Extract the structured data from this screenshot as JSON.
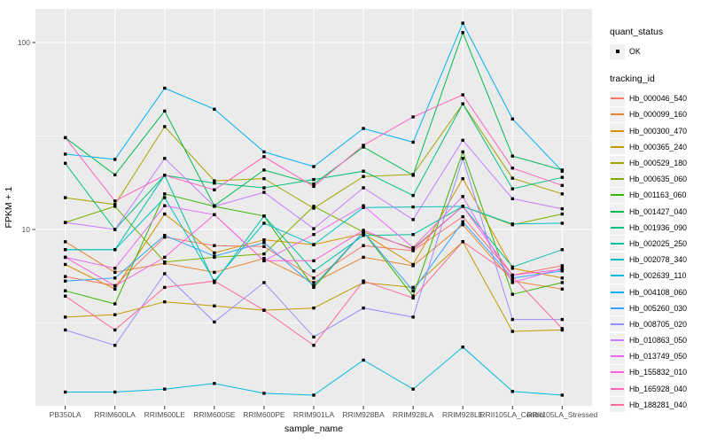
{
  "figure": {
    "panel_bg": "#EBEBEB",
    "grid_color": "#FFFFFF",
    "axis_text_color": "#4D4D4D",
    "tick_color": "#333333",
    "marker_color": "#000000"
  },
  "legend": {
    "quant_status": {
      "title": "quant_status",
      "items": [
        {
          "label": "OK"
        }
      ]
    },
    "tracking_id": {
      "title": "tracking_id"
    }
  },
  "chart_data": {
    "type": "line",
    "title": "",
    "xlabel": "sample_name",
    "ylabel": "FPKM + 1",
    "y_scale": "log10",
    "ylim": [
      1.14,
      151
    ],
    "y_major_ticks": [
      10,
      100
    ],
    "y_tick_labels": [
      "10",
      "100"
    ],
    "y_minor_breaks": [
      3.162,
      31.62
    ],
    "grid": true,
    "legend_position": "right",
    "marker": {
      "shape": "square",
      "color": "#000000",
      "legend_label": "OK"
    },
    "categories": [
      "PB350LA",
      "RRIM600LA",
      "RRIM600LE",
      "RRIM600SE",
      "RRIM600PE",
      "RRIM901LA",
      "RRIM928BA",
      "RRIM928LA",
      "RRIM928LE",
      "RRII105LA_Control",
      "RRII105LA_Stressed"
    ],
    "series": [
      {
        "name": "Hb_000046_540",
        "color": "#F8766D",
        "values": [
          5.6,
          5.0,
          9.1,
          8.2,
          8.1,
          5.5,
          8.2,
          7.7,
          11.7,
          5.7,
          6.4
        ]
      },
      {
        "name": "Hb_000099_160",
        "color": "#EA8331",
        "values": [
          8.6,
          5.9,
          6.6,
          5.9,
          7.0,
          5.2,
          7.1,
          6.4,
          10.6,
          5.3,
          4.8
        ]
      },
      {
        "name": "Hb_000300_470",
        "color": "#D89000",
        "values": [
          6.5,
          4.8,
          12.1,
          7.5,
          8.8,
          8.3,
          9.5,
          6.5,
          18.7,
          6.2,
          5.5
        ]
      },
      {
        "name": "Hb_000365_240",
        "color": "#C09B00",
        "values": [
          3.4,
          3.5,
          4.1,
          3.9,
          3.7,
          3.8,
          5.2,
          4.9,
          8.6,
          2.85,
          2.9
        ]
      },
      {
        "name": "Hb_000529_180",
        "color": "#A3A500",
        "values": [
          14.8,
          13.6,
          35.5,
          18.2,
          18.7,
          13.0,
          19.2,
          19.7,
          47.0,
          18.8,
          15.5
        ]
      },
      {
        "name": "Hb_000635_060",
        "color": "#7CAE00",
        "values": [
          10.9,
          13.3,
          6.7,
          7.1,
          7.4,
          13.3,
          9.7,
          7.9,
          13.3,
          10.6,
          12.1
        ]
      },
      {
        "name": "Hb_001163_060",
        "color": "#39B600",
        "values": [
          4.7,
          4.0,
          15.5,
          13.3,
          11.8,
          4.9,
          9.7,
          4.4,
          26.0,
          4.5,
          5.2
        ]
      },
      {
        "name": "Hb_001427_040",
        "color": "#00BB4E",
        "values": [
          31.0,
          19.6,
          43.0,
          13.4,
          20.8,
          17.5,
          27.6,
          19.5,
          113.0,
          24.7,
          20.8
        ]
      },
      {
        "name": "Hb_001936_090",
        "color": "#00BF7D",
        "values": [
          22.6,
          10.0,
          19.5,
          17.7,
          16.7,
          18.5,
          20.5,
          15.2,
          47.0,
          16.5,
          19.0
        ]
      },
      {
        "name": "Hb_002025_250",
        "color": "#00C1A3",
        "values": [
          7.8,
          7.8,
          19.5,
          5.2,
          11.8,
          6.0,
          9.3,
          9.4,
          13.3,
          6.3,
          7.8
        ]
      },
      {
        "name": "Hb_002078_340",
        "color": "#00BFC4",
        "values": [
          7.8,
          7.8,
          14.8,
          5.3,
          10.8,
          8.3,
          13.1,
          13.2,
          13.3,
          10.7,
          10.8
        ]
      },
      {
        "name": "Hb_002639_110",
        "color": "#00BAE0",
        "values": [
          1.35,
          1.35,
          1.4,
          1.5,
          1.33,
          1.3,
          2.0,
          1.4,
          2.35,
          1.36,
          1.3
        ]
      },
      {
        "name": "Hb_004108_060",
        "color": "#00B0F6",
        "values": [
          25.3,
          23.7,
          57.0,
          44.0,
          26.0,
          21.7,
          34.7,
          29.3,
          127.0,
          39.0,
          20.5
        ]
      },
      {
        "name": "Hb_005260_030",
        "color": "#35A2FF",
        "values": [
          5.3,
          5.5,
          9.3,
          7.2,
          8.5,
          5.0,
          9.7,
          4.7,
          11.0,
          5.5,
          6.0
        ]
      },
      {
        "name": "Hb_008705_020",
        "color": "#9590FF",
        "values": [
          2.9,
          2.4,
          5.8,
          3.2,
          5.2,
          2.66,
          3.8,
          3.4,
          24.0,
          3.3,
          3.3
        ]
      },
      {
        "name": "Hb_010863_050",
        "color": "#C77CFF",
        "values": [
          10.9,
          10.0,
          24.0,
          13.3,
          15.8,
          10.1,
          16.7,
          11.3,
          30.0,
          14.6,
          12.9
        ]
      },
      {
        "name": "Hb_013749_050",
        "color": "#E76BF3",
        "values": [
          7.1,
          6.2,
          13.4,
          12.0,
          6.8,
          9.4,
          13.4,
          8.0,
          15.0,
          5.2,
          6.2
        ]
      },
      {
        "name": "Hb_155832_010",
        "color": "#FA62DB",
        "values": [
          7.1,
          5.0,
          7.1,
          12.0,
          6.8,
          6.8,
          9.9,
          7.8,
          13.3,
          5.7,
          6.1
        ]
      },
      {
        "name": "Hb_165928_040",
        "color": "#FF62BC",
        "values": [
          31.0,
          14.2,
          19.5,
          16.3,
          24.5,
          17.0,
          28.2,
          40.0,
          52.5,
          21.3,
          17.2
        ]
      },
      {
        "name": "Hb_188281_040",
        "color": "#FF6A98",
        "values": [
          4.4,
          2.9,
          4.9,
          5.3,
          3.7,
          2.4,
          5.3,
          4.3,
          8.6,
          5.6,
          2.95
        ]
      }
    ]
  }
}
